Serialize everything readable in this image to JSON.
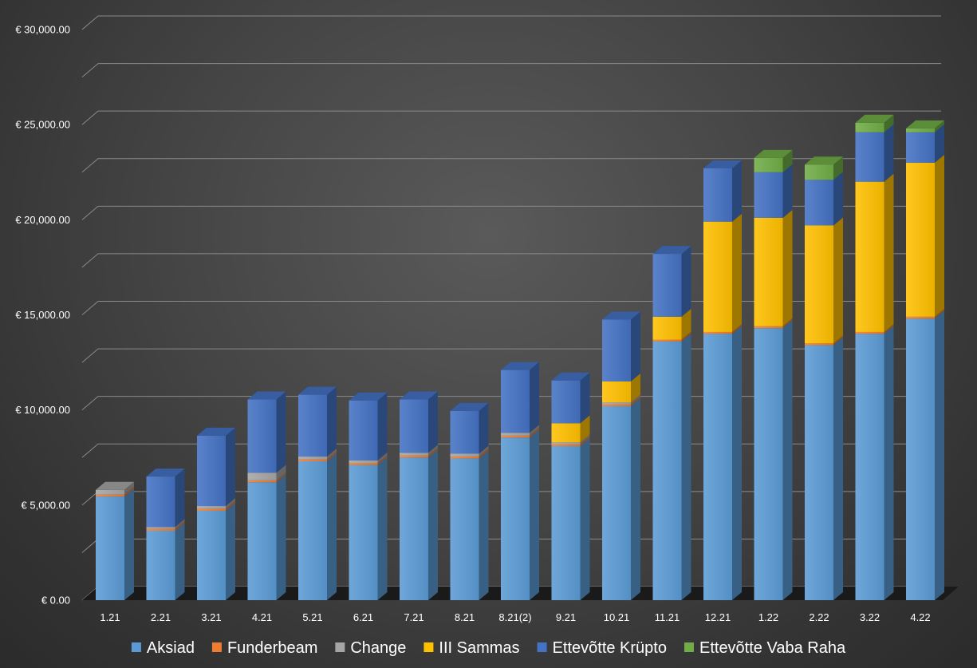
{
  "chart_data": {
    "type": "bar",
    "stacked": true,
    "style": "3d-column",
    "categories": [
      "1.21",
      "2.21",
      "3.21",
      "4.21",
      "5.21",
      "6.21",
      "7.21",
      "8.21",
      "8.21(2)",
      "9.21",
      "10.21",
      "11.21",
      "12.21",
      "1.22",
      "2.22",
      "3.22",
      "4.22"
    ],
    "series": [
      {
        "name": "Aksiad",
        "color": "#5b9bd5",
        "values": [
          5450,
          3650,
          4700,
          6200,
          7300,
          7100,
          7500,
          7450,
          8550,
          8100,
          10200,
          13600,
          14000,
          14300,
          13400,
          14000,
          14800
        ]
      },
      {
        "name": "Funderbeam",
        "color": "#ed7d31",
        "values": [
          100,
          100,
          100,
          100,
          100,
          100,
          100,
          100,
          100,
          100,
          100,
          100,
          100,
          100,
          100,
          100,
          100
        ]
      },
      {
        "name": "Change",
        "color": "#a5a5a5",
        "values": [
          250,
          100,
          150,
          400,
          150,
          150,
          150,
          150,
          150,
          100,
          100,
          0,
          0,
          0,
          0,
          0,
          0
        ]
      },
      {
        "name": "III Sammas",
        "color": "#ffc000",
        "values": [
          0,
          0,
          0,
          0,
          0,
          0,
          0,
          0,
          0,
          1000,
          1100,
          1200,
          5800,
          5700,
          6200,
          7900,
          8100
        ]
      },
      {
        "name": "Ettevõtte Krüpto",
        "color": "#4472c4",
        "values": [
          0,
          2650,
          3700,
          3850,
          3250,
          3150,
          2800,
          2250,
          3300,
          2250,
          3250,
          3300,
          2800,
          2400,
          2400,
          2600,
          1600
        ]
      },
      {
        "name": "Ettevõtte Vaba Raha",
        "color": "#70ad47",
        "values": [
          0,
          0,
          0,
          0,
          0,
          0,
          0,
          0,
          0,
          0,
          0,
          0,
          0,
          750,
          800,
          500,
          200
        ]
      }
    ],
    "ylim": [
      0,
      30000
    ],
    "yticks": [
      0,
      5000,
      10000,
      15000,
      20000,
      25000,
      30000
    ],
    "ytick_labels": [
      "€ 0.00",
      "€ 5,000.00",
      "€ 10,000.00",
      "€ 15,000.00",
      "€ 20,000.00",
      "€ 25,000.00",
      "€ 30,000.00"
    ],
    "title": "",
    "xlabel": "",
    "ylabel": "",
    "grid": true,
    "legend": "bottom"
  }
}
